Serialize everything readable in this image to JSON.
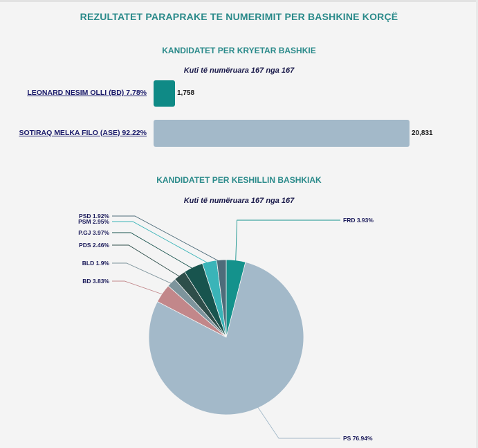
{
  "page": {
    "title": "REZULTATET PARAPRAKE TE NUMERIMIT PER BASHKINE KORÇË"
  },
  "mayor": {
    "title": "KANDIDATET PER KRYETAR BASHKIE",
    "subtitle": "Kuti të numëruara 167 nga 167"
  },
  "council": {
    "title": "KANDIDATET PER KESHILLIN BASHKIAK",
    "subtitle": "Kuti të numëruara 167 nga 167"
  },
  "chart_data": [
    {
      "type": "bar",
      "orientation": "horizontal",
      "title": "KANDIDATET PER KRYETAR BASHKIE",
      "subtitle": "Kuti të numëruara 167 nga 167",
      "categories": [
        "LEONARD NESIM OLLI (BD) 7.78%",
        "SOTIRAQ MELKA FILO (ASE) 92.22%"
      ],
      "values": [
        1758,
        20831
      ],
      "value_labels": [
        "1,758",
        "20,831"
      ],
      "colors": [
        "#0f8a86",
        "#a3b9c9"
      ]
    },
    {
      "type": "pie",
      "title": "KANDIDATET PER KESHILLIN BASHKIAK",
      "subtitle": "Kuti të numëruara 167 nga 167",
      "slices": [
        {
          "label": "FRD 3.93%",
          "value": 3.93,
          "color": "#14928c"
        },
        {
          "label": "PS 76.94%",
          "value": 76.94,
          "color": "#a3b9c9"
        },
        {
          "label": "BD 3.83%",
          "value": 3.83,
          "color": "#c2878a"
        },
        {
          "label": "BLD 1.9%",
          "value": 1.9,
          "color": "#7d949c"
        },
        {
          "label": "PDS 2.46%",
          "value": 2.46,
          "color": "#2e4e4a"
        },
        {
          "label": "P.GJ 3.97%",
          "value": 3.97,
          "color": "#18544e"
        },
        {
          "label": "PSM 2.95%",
          "value": 2.95,
          "color": "#3ab4b8"
        },
        {
          "label": "PSD 1.92%",
          "value": 1.92,
          "color": "#4e6c7a"
        }
      ]
    }
  ]
}
